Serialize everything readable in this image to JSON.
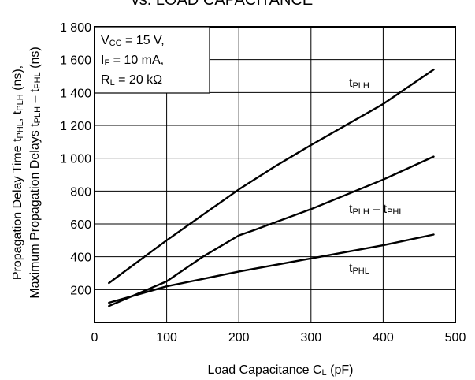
{
  "chart_data": {
    "type": "line",
    "title": "vs. LOAD CAPACITANCE",
    "xlabel": {
      "main": "Load Capacitance",
      "symbol": "C",
      "sub": "L",
      "unit": "(pF)"
    },
    "ylabel": {
      "line1": {
        "prefix": "Propagation Delay Time  t",
        "sub1": "PHL",
        "mid": ", t",
        "sub2": "PLH",
        "suffix": " (ns),"
      },
      "line2": {
        "prefix": "Maximum Propagation Delays  t",
        "sub1": "PLH",
        "mid": " – t",
        "sub2": "PHL",
        "suffix": " (ns)"
      }
    },
    "xlim": [
      0,
      500
    ],
    "ylim": [
      0,
      1800
    ],
    "xticks": [
      0,
      100,
      200,
      300,
      400,
      500
    ],
    "xtick_labels": [
      "0",
      "100",
      "200",
      "300",
      "400",
      "500"
    ],
    "yticks": [
      200,
      400,
      600,
      800,
      1000,
      1200,
      1400,
      1600,
      1800
    ],
    "ytick_labels": [
      "200",
      "400",
      "600",
      "800",
      "1 000",
      "1 200",
      "1 400",
      "1 600",
      "1 800"
    ],
    "grid": true,
    "conditions": [
      {
        "symbol": "V",
        "sub": "CC",
        "text": " = 15 V,"
      },
      {
        "symbol": "I",
        "sub": "F",
        "text": " = 10 mA,"
      },
      {
        "symbol": "R",
        "sub": "L",
        "text": " = 20 kΩ"
      }
    ],
    "series": [
      {
        "name": "tPLH",
        "label_main": "t",
        "label_sub": "PLH",
        "x": [
          20,
          100,
          200,
          250,
          300,
          400,
          470
        ],
        "y": [
          240,
          500,
          810,
          950,
          1080,
          1330,
          1540
        ]
      },
      {
        "name": "tPLH – tPHL",
        "label_main": "t",
        "label_sub1": "PLH",
        "label_mid": " – t",
        "label_sub2": "PHL",
        "x": [
          20,
          100,
          150,
          200,
          220,
          300,
          400,
          470
        ],
        "y": [
          100,
          250,
          400,
          530,
          560,
          690,
          870,
          1010
        ]
      },
      {
        "name": "tPHL",
        "label_main": "t",
        "label_sub": "PHL",
        "x": [
          20,
          100,
          200,
          300,
          400,
          470
        ],
        "y": [
          120,
          220,
          310,
          390,
          470,
          535
        ]
      }
    ]
  }
}
